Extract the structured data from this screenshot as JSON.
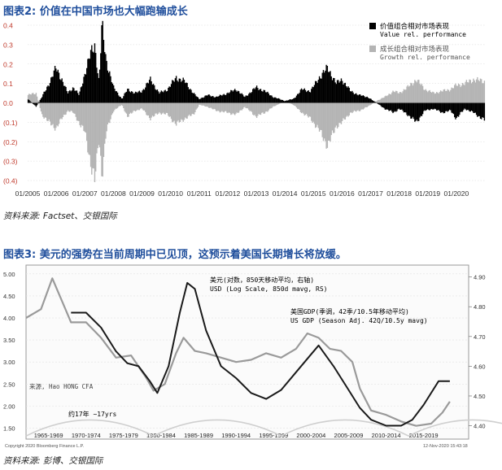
{
  "figure2": {
    "title": "图表2: 价值在中国市场也大幅跑输成长",
    "source": "资料来源: Factset、交银国际"
  },
  "figure3": {
    "title": "图表3: 美元的强势在当前周期中已见顶，这预示着美国长期增长将放缓。",
    "source": "资料来源: 彭博、交银国际"
  },
  "colors": {
    "value": "#000000",
    "growth": "#b4b4b4",
    "usd": "#1a1a1a",
    "gdp": "#9a9a9a",
    "cycle": "#cfcfcf",
    "title": "#1f4e9c",
    "axis_red": "#c0392b"
  },
  "chart_data": [
    {
      "type": "area",
      "yticks": [
        "0.4",
        "0.3",
        "0.2",
        "0.1",
        "0.0",
        "(0.1)",
        "(0.2)",
        "(0.3)",
        "(0.4)"
      ],
      "ylim": [
        -0.4,
        0.4
      ],
      "xticks": [
        "01/2005",
        "01/2006",
        "01/2007",
        "01/2008",
        "01/2009",
        "01/2010",
        "01/2011",
        "01/2012",
        "01/2013",
        "01/2014",
        "01/2015",
        "01/2016",
        "01/2017",
        "01/2018",
        "01/2019",
        "01/2020"
      ],
      "xlim": [
        2005.0,
        2021.0
      ],
      "legend_position": "top-right",
      "series": [
        {
          "name": "价值组合相对市场表现 Value rel. performance",
          "legend_cn": "价值组合相对市场表现",
          "legend_en": "Value rel. performance",
          "x": [
            2005.0,
            2005.3,
            2005.5,
            2005.75,
            2006.0,
            2006.2,
            2006.4,
            2006.6,
            2006.8,
            2007.0,
            2007.2,
            2007.35,
            2007.5,
            2007.6,
            2007.75,
            2008.0,
            2008.3,
            2008.5,
            2008.75,
            2009.0,
            2009.3,
            2009.6,
            2009.9,
            2010.2,
            2010.5,
            2010.8,
            2011.0,
            2011.3,
            2011.6,
            2012.0,
            2012.3,
            2012.6,
            2013.0,
            2013.3,
            2013.6,
            2014.0,
            2014.3,
            2014.6,
            2014.9,
            2015.2,
            2015.5,
            2015.8,
            2016.0,
            2016.3,
            2016.6,
            2016.9,
            2017.2,
            2017.5,
            2017.8,
            2018.0,
            2018.3,
            2018.6,
            2018.9,
            2019.2,
            2019.5,
            2019.8,
            2020.0,
            2020.3,
            2020.6,
            2021.0
          ],
          "values": [
            0.02,
            -0.02,
            0.03,
            0.1,
            0.18,
            0.12,
            0.05,
            0.08,
            0.04,
            0.15,
            0.25,
            0.3,
            0.1,
            0.4,
            0.22,
            0.08,
            0.02,
            0.07,
            0.05,
            0.06,
            0.12,
            0.05,
            0.07,
            0.13,
            0.11,
            0.05,
            0.02,
            0.04,
            0.03,
            0.05,
            0.07,
            0.03,
            0.08,
            0.06,
            0.03,
            0.01,
            0.02,
            0.07,
            0.06,
            0.13,
            0.18,
            0.1,
            0.12,
            0.06,
            0.04,
            0.03,
            0.0,
            -0.03,
            -0.05,
            -0.03,
            -0.06,
            -0.1,
            -0.04,
            -0.03,
            -0.05,
            -0.04,
            -0.08,
            -0.03,
            -0.05,
            -0.09
          ]
        },
        {
          "name": "成长组合相对市场表现 Growth rel. performance",
          "legend_cn": "成长组合相对市场表现",
          "legend_en": "Growth rel. performance",
          "x": [
            2005.0,
            2005.3,
            2005.5,
            2005.75,
            2006.0,
            2006.2,
            2006.4,
            2006.6,
            2006.8,
            2007.0,
            2007.2,
            2007.35,
            2007.5,
            2007.6,
            2007.75,
            2008.0,
            2008.3,
            2008.5,
            2008.75,
            2009.0,
            2009.3,
            2009.6,
            2009.9,
            2010.2,
            2010.5,
            2010.8,
            2011.0,
            2011.3,
            2011.6,
            2012.0,
            2012.3,
            2012.6,
            2013.0,
            2013.3,
            2013.6,
            2014.0,
            2014.3,
            2014.6,
            2014.9,
            2015.2,
            2015.5,
            2015.8,
            2016.0,
            2016.3,
            2016.6,
            2016.9,
            2017.2,
            2017.5,
            2017.8,
            2018.0,
            2018.3,
            2018.6,
            2018.9,
            2019.2,
            2019.5,
            2019.8,
            2020.0,
            2020.3,
            2020.6,
            2021.0
          ],
          "values": [
            0.04,
            0.05,
            -0.06,
            -0.1,
            -0.13,
            -0.08,
            -0.04,
            -0.05,
            -0.1,
            -0.15,
            -0.3,
            -0.4,
            -0.18,
            -0.37,
            -0.15,
            -0.04,
            -0.01,
            -0.07,
            -0.04,
            -0.03,
            -0.08,
            -0.05,
            -0.06,
            -0.11,
            -0.08,
            -0.06,
            -0.01,
            -0.02,
            -0.04,
            -0.05,
            -0.06,
            -0.02,
            -0.07,
            -0.05,
            -0.02,
            0.01,
            -0.01,
            -0.05,
            -0.08,
            -0.14,
            -0.22,
            -0.12,
            -0.1,
            -0.05,
            -0.04,
            -0.02,
            0.01,
            0.03,
            0.06,
            0.05,
            0.08,
            0.12,
            0.07,
            0.05,
            0.06,
            0.07,
            0.09,
            0.1,
            0.12,
            0.11
          ]
        }
      ]
    },
    {
      "type": "line",
      "yticks_left": [
        "5.00",
        "4.50",
        "4.00",
        "3.50",
        "3.00",
        "2.50",
        "2.00",
        "1.50"
      ],
      "ylim_left": [
        1.25,
        5.2
      ],
      "yticks_right": [
        "4.90",
        "4.80",
        "4.70",
        "4.60",
        "4.50",
        "4.40"
      ],
      "ylim_right": [
        4.355,
        4.94
      ],
      "xticks": [
        "1965-1969",
        "1970-1974",
        "1975-1979",
        "1980-1984",
        "1985-1989",
        "1990-1994",
        "1995-1999",
        "2000-2004",
        "2005-2009",
        "2010-2014",
        "2015-2019"
      ],
      "xlim": [
        1964.0,
        2023.0
      ],
      "series": [
        {
          "name": "USD",
          "label_cn": "美元(对数，850天移动平均，右轴)",
          "label_en": "USD (Log Scale, 850d mavg, RS)",
          "axis": "right",
          "x": [
            1970,
            1972,
            1974,
            1976,
            1977.5,
            1979,
            1980.5,
            1981.5,
            1983,
            1984.5,
            1985.5,
            1986.5,
            1988,
            1990,
            1992,
            1994,
            1996,
            1998,
            2000,
            2002,
            2003,
            2005,
            2007,
            2008.5,
            2010,
            2012,
            2014,
            2015.5,
            2017,
            2019,
            2020.5
          ],
          "values": [
            4.78,
            4.78,
            4.73,
            4.65,
            4.61,
            4.6,
            4.55,
            4.51,
            4.6,
            4.78,
            4.88,
            4.86,
            4.72,
            4.6,
            4.56,
            4.51,
            4.49,
            4.52,
            4.58,
            4.64,
            4.67,
            4.6,
            4.52,
            4.46,
            4.42,
            4.4,
            4.4,
            4.42,
            4.47,
            4.55,
            4.55
          ]
        },
        {
          "name": "US GDP",
          "label_cn": "美国GDP(季调，42季/10.5年移动平均)",
          "label_en": "US GDP (Season Adj. 42Q/10.5y mavg)",
          "axis": "left",
          "x": [
            1964,
            1966,
            1967.5,
            1968.5,
            1970,
            1972,
            1974,
            1976,
            1978,
            1980,
            1981,
            1982.5,
            1984,
            1985,
            1986.5,
            1988,
            1990,
            1992,
            1994,
            1996,
            1998,
            2000,
            2001.5,
            2003,
            2004.5,
            2006,
            2007.5,
            2008.5,
            2010,
            2012,
            2014,
            2016,
            2018,
            2019.5,
            2020.5
          ],
          "values": [
            4.0,
            4.2,
            4.9,
            4.5,
            3.9,
            3.9,
            3.55,
            3.1,
            3.15,
            2.65,
            2.35,
            2.5,
            3.2,
            3.55,
            3.25,
            3.2,
            3.1,
            3.0,
            3.05,
            3.2,
            3.1,
            3.3,
            3.65,
            3.55,
            3.3,
            3.25,
            3.0,
            2.4,
            1.9,
            1.8,
            1.65,
            1.55,
            1.6,
            1.85,
            2.1
          ]
        }
      ],
      "annotations": {
        "source_note": "来源, Hao HONG CFA",
        "cycle_note": "约17年 ~17yrs",
        "copyright": "Copyright 2020 Bloomberg Finance L.P.",
        "timestamp": "12-Nov-2020 15:43:18"
      }
    }
  ]
}
